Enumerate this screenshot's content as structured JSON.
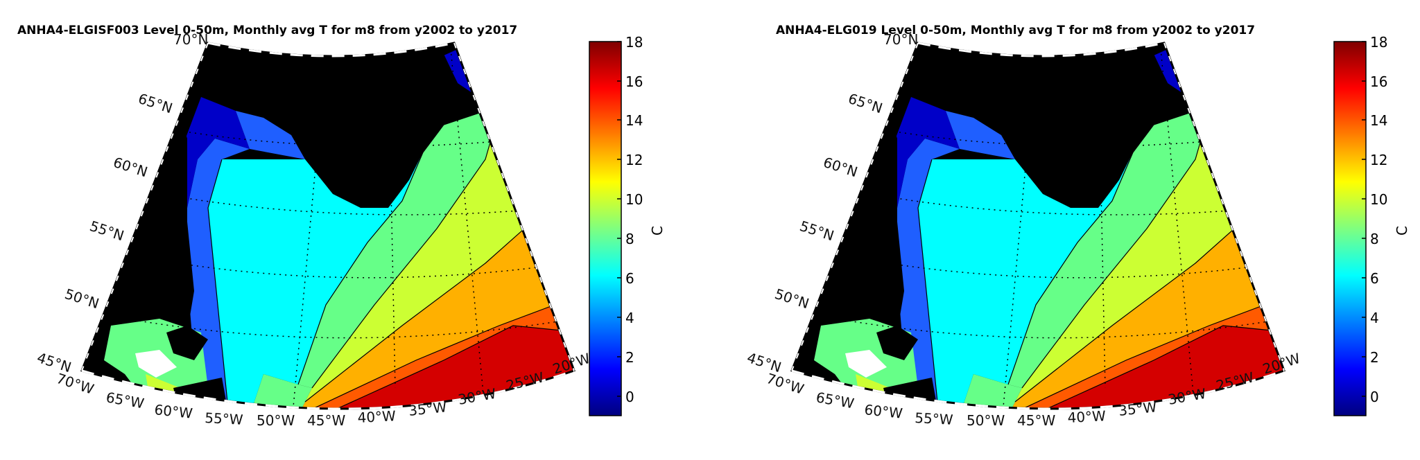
{
  "chart_data": [
    {
      "type": "heatmap",
      "title": "ANHA4-ELGISF003 Level 0-50m, Monthly avg T for m8 from y2002 to y2017",
      "colorbar": {
        "label": "C",
        "ticks": [
          "18",
          "16",
          "14",
          "12",
          "10",
          "8",
          "6",
          "4",
          "2",
          "0"
        ],
        "range": [
          -1,
          18
        ],
        "colormap": [
          "#00007f",
          "#0000ff",
          "#007fff",
          "#00ffff",
          "#7fff7f",
          "#ffff00",
          "#ff7f00",
          "#ff0000",
          "#7f0000"
        ]
      },
      "lat_labels": [
        "70°N",
        "65°N",
        "60°N",
        "55°N",
        "50°N",
        "45°N"
      ],
      "lon_labels": [
        "70°W",
        "65°W",
        "60°W",
        "55°W",
        "50°W",
        "45°W",
        "40°W",
        "35°W",
        "30°W",
        "25°W",
        "20°W"
      ],
      "temperature_bands": [
        {
          "range": "<2",
          "color": "#0000c8"
        },
        {
          "range": "2-4",
          "color": "#1f5fff"
        },
        {
          "range": "4-6",
          "color": "#00d8ff"
        },
        {
          "range": "6-8",
          "color": "#00ffff"
        },
        {
          "range": "8-10",
          "color": "#66ff88"
        },
        {
          "range": "10-12",
          "color": "#ccff33"
        },
        {
          "range": "12-14",
          "color": "#ffb000"
        },
        {
          "range": "14-16",
          "color": "#ff5a00"
        },
        {
          "range": ">16",
          "color": "#d40000"
        }
      ]
    },
    {
      "type": "heatmap",
      "title": "ANHA4-ELG019 Level 0-50m, Monthly avg T for m8 from y2002 to y2017",
      "colorbar": {
        "label": "C",
        "ticks": [
          "18",
          "16",
          "14",
          "12",
          "10",
          "8",
          "6",
          "4",
          "2",
          "0"
        ],
        "range": [
          -1,
          18
        ],
        "colormap": [
          "#00007f",
          "#0000ff",
          "#007fff",
          "#00ffff",
          "#7fff7f",
          "#ffff00",
          "#ff7f00",
          "#ff0000",
          "#7f0000"
        ]
      },
      "lat_labels": [
        "70°N",
        "65°N",
        "60°N",
        "55°N",
        "50°N",
        "45°N"
      ],
      "lon_labels": [
        "70°W",
        "65°W",
        "60°W",
        "55°W",
        "50°W",
        "45°W",
        "40°W",
        "35°W",
        "30°W",
        "25°W",
        "20°W"
      ],
      "temperature_bands": [
        {
          "range": "<2",
          "color": "#0000c8"
        },
        {
          "range": "2-4",
          "color": "#1f5fff"
        },
        {
          "range": "4-6",
          "color": "#00d8ff"
        },
        {
          "range": "6-8",
          "color": "#00ffff"
        },
        {
          "range": "8-10",
          "color": "#66ff88"
        },
        {
          "range": "10-12",
          "color": "#ccff33"
        },
        {
          "range": "12-14",
          "color": "#ffb000"
        },
        {
          "range": "14-16",
          "color": "#ff5a00"
        },
        {
          "range": ">16",
          "color": "#d40000"
        }
      ]
    }
  ]
}
